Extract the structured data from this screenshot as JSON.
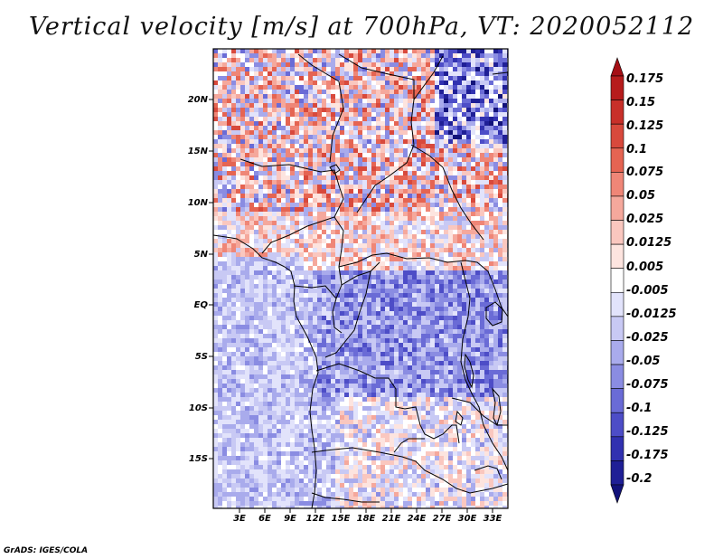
{
  "title": "Vertical velocity [m/s] at 700hPa, VT: 2020052112",
  "credit": "GrADS: IGES/COLA",
  "map": {
    "variable": "Vertical velocity",
    "units": "m/s",
    "level": "700hPa",
    "valid_time": "2020052112",
    "lat_labels": [
      "20N",
      "15N",
      "10N",
      "5N",
      "EQ",
      "5S",
      "10S",
      "15S"
    ],
    "lon_labels": [
      "3E",
      "6E",
      "9E",
      "12E",
      "15E",
      "18E",
      "21E",
      "24E",
      "27E",
      "30E",
      "33E"
    ]
  },
  "colorbar": {
    "labels": [
      "0.175",
      "0.15",
      "0.125",
      "0.1",
      "0.075",
      "0.05",
      "0.025",
      "0.0125",
      "0.005",
      "-0.005",
      "-0.0125",
      "-0.025",
      "-0.05",
      "-0.075",
      "-0.1",
      "-0.125",
      "-0.175",
      "-0.2"
    ],
    "colors": [
      "#a50f15",
      "#b61c1c",
      "#c8302a",
      "#d8493c",
      "#e56452",
      "#ef8677",
      "#f5a89c",
      "#fac7bf",
      "#fde4df",
      "#ffffff",
      "#e2e3fb",
      "#c8c9f4",
      "#a9abec",
      "#8a8ce2",
      "#6a6bd6",
      "#4d4dc7",
      "#3131b0",
      "#1f1f96",
      "#12127a"
    ]
  }
}
